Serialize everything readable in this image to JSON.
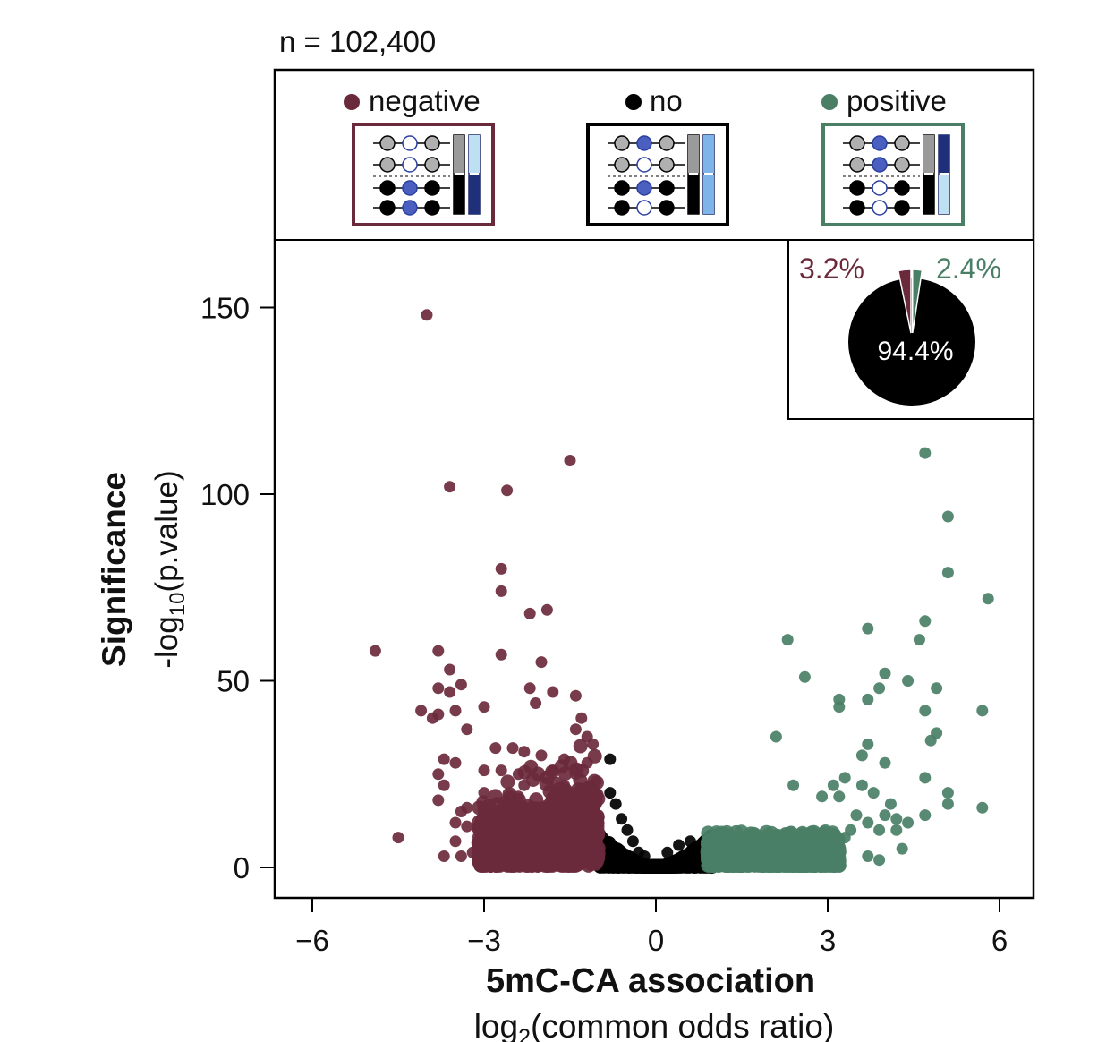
{
  "n_label": "n = 102,400",
  "legend": {
    "negative": {
      "label": "negative",
      "color": "#6b2a3c"
    },
    "no": {
      "label": "no",
      "color": "#000000"
    },
    "positive": {
      "label": "positive",
      "color": "#4a7f66"
    }
  },
  "pie": {
    "labels": {
      "negative": "3.2%",
      "no": "94.4%",
      "positive": "2.4%"
    },
    "values": {
      "negative": 3.2,
      "no": 94.4,
      "positive": 2.4
    }
  },
  "axes": {
    "ylabel_bold": "Significance",
    "ylabel_log": "-log",
    "ylabel_sub": "10",
    "ylabel_tail": "(p.value)",
    "xlabel_bold": "5mC-CA association",
    "xlabel_log": "log",
    "xlabel_sub": "2",
    "xlabel_tail": "(common odds ratio)"
  },
  "chart_data": {
    "type": "scatter",
    "title": "n = 102,400",
    "xlabel": "5mC-CA association log2(common odds ratio)",
    "ylabel": "Significance -log10(p.value)",
    "xlim": [
      -6.5,
      6.5
    ],
    "ylim": [
      -8,
      168
    ],
    "xticks": [
      -6,
      -3,
      0,
      3,
      6
    ],
    "xtick_labels": [
      "−6",
      "−3",
      "0",
      "3",
      "6"
    ],
    "yticks": [
      0,
      50,
      100,
      150
    ],
    "ytick_labels": [
      "0",
      "50",
      "100",
      "150"
    ],
    "series": [
      {
        "name": "negative",
        "color": "#6b2a3c",
        "points": [
          [
            -4.0,
            148
          ],
          [
            -1.5,
            109
          ],
          [
            -2.6,
            101
          ],
          [
            -3.6,
            102
          ],
          [
            -2.7,
            80
          ],
          [
            -2.7,
            74
          ],
          [
            -2.2,
            68
          ],
          [
            -1.9,
            69
          ],
          [
            -4.9,
            58
          ],
          [
            -3.8,
            58
          ],
          [
            -2.7,
            57
          ],
          [
            -2.0,
            55
          ],
          [
            -3.6,
            53
          ],
          [
            -3.4,
            49
          ],
          [
            -3.8,
            48
          ],
          [
            -3.6,
            47
          ],
          [
            -2.2,
            48
          ],
          [
            -1.8,
            47
          ],
          [
            -2.1,
            44
          ],
          [
            -1.4,
            46
          ],
          [
            -3.0,
            43
          ],
          [
            -4.1,
            42
          ],
          [
            -3.8,
            41
          ],
          [
            -3.9,
            40
          ],
          [
            -3.5,
            42
          ],
          [
            -1.3,
            40
          ],
          [
            -1.4,
            37
          ],
          [
            -3.3,
            37
          ],
          [
            -1.2,
            35
          ],
          [
            -1.1,
            33
          ],
          [
            -2.8,
            32
          ],
          [
            -2.5,
            32
          ],
          [
            -2.3,
            31
          ],
          [
            -2.0,
            30
          ],
          [
            -1.6,
            29
          ],
          [
            -1.2,
            28
          ],
          [
            -3.7,
            29
          ],
          [
            -3.5,
            28
          ],
          [
            -3.0,
            26
          ],
          [
            -2.7,
            26
          ],
          [
            -2.4,
            25
          ],
          [
            -1.8,
            26
          ],
          [
            -1.4,
            25
          ],
          [
            -3.8,
            25
          ],
          [
            -3.7,
            22
          ],
          [
            -2.3,
            22
          ],
          [
            -1.6,
            22
          ],
          [
            -3.0,
            20
          ],
          [
            -2.4,
            19
          ],
          [
            -3.8,
            18
          ],
          [
            -3.3,
            16
          ],
          [
            -2.2,
            16
          ],
          [
            -1.7,
            17
          ],
          [
            -3.4,
            15
          ],
          [
            -2.8,
            14
          ],
          [
            -3.5,
            12
          ],
          [
            -3.3,
            11
          ],
          [
            -4.5,
            8
          ],
          [
            -2.9,
            10
          ],
          [
            -3.5,
            7
          ],
          [
            -3.7,
            3
          ],
          [
            -3.4,
            3
          ],
          [
            -3.0,
            3
          ],
          [
            -3.2,
            4
          ]
        ]
      },
      {
        "name": "no",
        "color": "#000000",
        "points": [
          [
            -0.8,
            29
          ],
          [
            -0.8,
            20
          ],
          [
            -0.7,
            17
          ],
          [
            -0.6,
            13
          ],
          [
            -0.5,
            10
          ],
          [
            -0.4,
            7
          ],
          [
            -0.3,
            4
          ],
          [
            0.4,
            6
          ],
          [
            0.6,
            7
          ],
          [
            0.2,
            4
          ],
          [
            -0.2,
            3
          ]
        ]
      },
      {
        "name": "positive",
        "color": "#4a7f66",
        "points": [
          [
            4.7,
            111
          ],
          [
            5.1,
            94
          ],
          [
            5.1,
            79
          ],
          [
            5.8,
            72
          ],
          [
            4.7,
            66
          ],
          [
            3.7,
            64
          ],
          [
            4.6,
            61
          ],
          [
            2.3,
            61
          ],
          [
            4.0,
            52
          ],
          [
            2.6,
            51
          ],
          [
            4.4,
            50
          ],
          [
            3.9,
            48
          ],
          [
            4.9,
            48
          ],
          [
            3.2,
            45
          ],
          [
            3.7,
            45
          ],
          [
            3.2,
            43
          ],
          [
            4.7,
            42
          ],
          [
            5.7,
            42
          ],
          [
            2.1,
            35
          ],
          [
            4.9,
            36
          ],
          [
            4.8,
            34
          ],
          [
            3.7,
            33
          ],
          [
            3.6,
            30
          ],
          [
            4.0,
            28
          ],
          [
            3.3,
            24
          ],
          [
            4.7,
            24
          ],
          [
            3.1,
            22
          ],
          [
            3.6,
            22
          ],
          [
            3.2,
            19
          ],
          [
            3.8,
            20
          ],
          [
            2.4,
            22
          ],
          [
            5.1,
            20
          ],
          [
            2.9,
            19
          ],
          [
            5.1,
            17
          ],
          [
            4.1,
            17
          ],
          [
            5.7,
            16
          ],
          [
            3.5,
            14
          ],
          [
            4.0,
            14
          ],
          [
            4.2,
            13
          ],
          [
            4.7,
            14
          ],
          [
            4.4,
            12
          ],
          [
            3.4,
            10
          ],
          [
            3.7,
            12
          ],
          [
            3.9,
            10
          ],
          [
            4.2,
            10
          ],
          [
            3.3,
            8
          ],
          [
            4.3,
            5
          ],
          [
            3.7,
            3
          ],
          [
            3.9,
            2
          ],
          [
            2.8,
            6
          ],
          [
            3.0,
            5
          ],
          [
            2.6,
            8
          ]
        ]
      }
    ]
  }
}
